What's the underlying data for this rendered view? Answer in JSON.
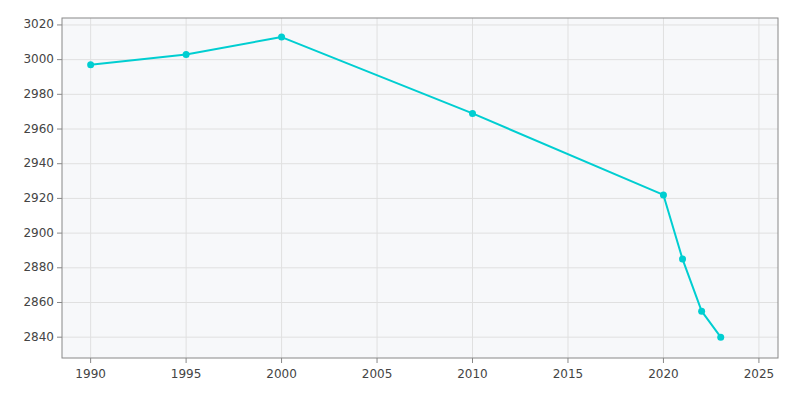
{
  "chart_data": {
    "type": "line",
    "x": [
      1990,
      1995,
      2000,
      2010,
      2020,
      2021,
      2022,
      2023
    ],
    "values": [
      2997,
      3003,
      3013,
      2969,
      2922,
      2885,
      2855,
      2840
    ],
    "color": "#00CED1",
    "marker": "circle",
    "xlim": [
      1988.5,
      2026
    ],
    "ylim": [
      2828,
      3024
    ],
    "xticks": [
      1990,
      1995,
      2000,
      2005,
      2010,
      2015,
      2020,
      2025
    ],
    "yticks": [
      2840,
      2860,
      2880,
      2900,
      2920,
      2940,
      2960,
      2980,
      3000,
      3020
    ],
    "grid": true
  }
}
